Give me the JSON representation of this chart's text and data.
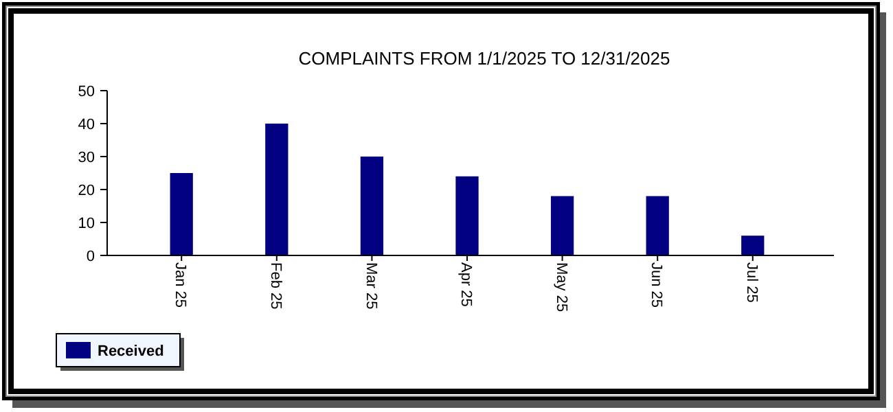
{
  "chart_data": {
    "type": "bar",
    "title": "COMPLAINTS FROM 1/1/2025 TO 12/31/2025",
    "categories": [
      "Jan 25",
      "Feb 25",
      "Mar 25",
      "Apr 25",
      "May 25",
      "Jun 25",
      "Jul 25"
    ],
    "series": [
      {
        "name": "Received",
        "color": "#000080",
        "values": [
          25,
          40,
          30,
          24,
          18,
          18,
          6
        ]
      }
    ],
    "ylim": [
      0,
      50
    ],
    "yticks": [
      0,
      10,
      20,
      30,
      40,
      50
    ],
    "grid": false,
    "legend": "bottom left"
  }
}
